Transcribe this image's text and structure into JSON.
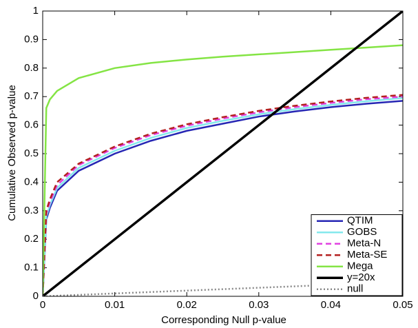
{
  "chart_data": {
    "type": "line",
    "xlabel": "Corresponding Null p-value",
    "ylabel": "Cumulative Observed p-value",
    "xlim": [
      0,
      0.05
    ],
    "xticks": [
      0,
      0.01,
      0.02,
      0.03,
      0.04,
      0.05
    ],
    "ylim": [
      0,
      1
    ],
    "yticks": [
      0,
      0.1,
      0.2,
      0.3,
      0.4,
      0.5,
      0.6,
      0.7,
      0.8,
      0.9,
      1
    ],
    "legend": "lower right",
    "series": [
      {
        "name": "QTIM",
        "color": "#2626b4",
        "dash": "solid",
        "width": 2.5,
        "x": [
          0,
          0.0005,
          0.001,
          0.002,
          0.005,
          0.01,
          0.015,
          0.02,
          0.025,
          0.03,
          0.035,
          0.04,
          0.045,
          0.05
        ],
        "values": [
          0,
          0.27,
          0.31,
          0.37,
          0.44,
          0.5,
          0.545,
          0.58,
          0.605,
          0.63,
          0.648,
          0.663,
          0.675,
          0.685
        ]
      },
      {
        "name": "GOBS",
        "color": "#84e8ec",
        "dash": "solid",
        "width": 2.5,
        "x": [
          0,
          0.0005,
          0.001,
          0.002,
          0.005,
          0.01,
          0.015,
          0.02,
          0.025,
          0.03,
          0.035,
          0.04,
          0.045,
          0.05
        ],
        "values": [
          0,
          0.28,
          0.32,
          0.38,
          0.45,
          0.51,
          0.555,
          0.59,
          0.615,
          0.638,
          0.656,
          0.671,
          0.684,
          0.695
        ]
      },
      {
        "name": "Meta-N",
        "color": "#e040e0",
        "dash": "dashed",
        "width": 2.5,
        "x": [
          0,
          0.0005,
          0.001,
          0.002,
          0.005,
          0.01,
          0.015,
          0.02,
          0.025,
          0.03,
          0.035,
          0.04,
          0.045,
          0.05
        ],
        "values": [
          0,
          0.29,
          0.33,
          0.39,
          0.46,
          0.52,
          0.565,
          0.598,
          0.623,
          0.645,
          0.663,
          0.678,
          0.691,
          0.7
        ]
      },
      {
        "name": "Meta-SE",
        "color": "#b42020",
        "dash": "dashed",
        "width": 2.5,
        "x": [
          0,
          0.0005,
          0.001,
          0.002,
          0.005,
          0.01,
          0.015,
          0.02,
          0.025,
          0.03,
          0.035,
          0.04,
          0.045,
          0.05
        ],
        "values": [
          0,
          0.3,
          0.34,
          0.4,
          0.465,
          0.525,
          0.57,
          0.603,
          0.628,
          0.65,
          0.668,
          0.683,
          0.696,
          0.706
        ]
      },
      {
        "name": "Mega",
        "color": "#84e444",
        "dash": "solid",
        "width": 2.5,
        "x": [
          0,
          0.0005,
          0.001,
          0.002,
          0.005,
          0.01,
          0.015,
          0.02,
          0.025,
          0.03,
          0.035,
          0.04,
          0.045,
          0.05
        ],
        "values": [
          0,
          0.66,
          0.69,
          0.72,
          0.765,
          0.8,
          0.818,
          0.83,
          0.84,
          0.848,
          0.856,
          0.864,
          0.872,
          0.88
        ]
      },
      {
        "name": "y=20x",
        "color": "#000000",
        "dash": "solid",
        "width": 3.5,
        "x": [
          0,
          0.05
        ],
        "values": [
          0,
          1
        ]
      },
      {
        "name": "null",
        "color": "#888888",
        "dash": "dotted",
        "width": 2.5,
        "x": [
          0,
          0.05
        ],
        "values": [
          0,
          0.05
        ]
      }
    ]
  }
}
